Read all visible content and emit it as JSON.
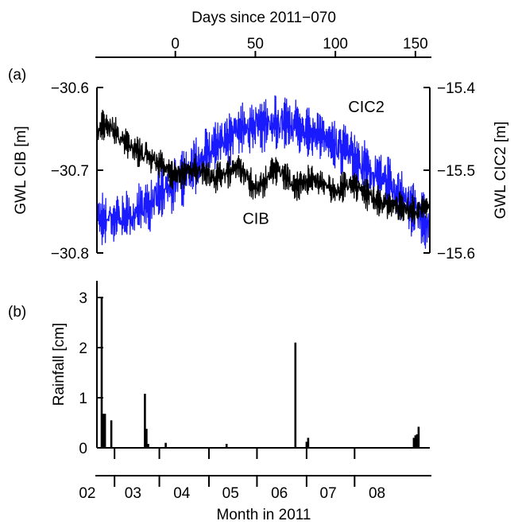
{
  "colors": {
    "cib": "#000000",
    "cic2": "#1a1aff",
    "rain": "#000000"
  },
  "top_axis": {
    "label": "Days since 2011−070",
    "ticks": [
      {
        "v": 0,
        "label": "0"
      },
      {
        "v": 50,
        "label": "50"
      },
      {
        "v": 100,
        "label": "100"
      },
      {
        "v": 150,
        "label": "150"
      }
    ]
  },
  "bottom_axis": {
    "label": "Month in 2011",
    "month_labels": [
      {
        "day": 15,
        "label": "02"
      },
      {
        "day": 43.5,
        "label": "03"
      },
      {
        "day": 74,
        "label": "04"
      },
      {
        "day": 104.5,
        "label": "05"
      },
      {
        "day": 135,
        "label": "06"
      },
      {
        "day": 165.5,
        "label": "07"
      },
      {
        "day": 196,
        "label": "08"
      }
    ],
    "boundaries": [
      32,
      60,
      91,
      121,
      152,
      182
    ]
  },
  "chart_data": [
    {
      "type": "line",
      "panel": "(a)",
      "x_unit": "day of year 2011",
      "xlim": [
        21,
        229
      ],
      "ylabel_left": "GWL CIB [m]",
      "ylabel_right": "GWL CIC2 [m]",
      "ylim_left": [
        -30.8,
        -30.6
      ],
      "ylim_right": [
        -15.6,
        -15.4
      ],
      "left_ticks": [
        {
          "v": -30.6,
          "label": "−30.6"
        },
        {
          "v": -30.7,
          "label": "−30.7"
        },
        {
          "v": -30.8,
          "label": "−30.8"
        }
      ],
      "right_ticks": [
        {
          "v": -15.4,
          "label": "−15.4"
        },
        {
          "v": -15.5,
          "label": "−15.5"
        },
        {
          "v": -15.6,
          "label": "−15.6"
        }
      ],
      "series": [
        {
          "name": "CIB",
          "axis": "left",
          "noise_amp": 0.02,
          "x": [
            21,
            25,
            30,
            35,
            40,
            45,
            50,
            55,
            60,
            65,
            70,
            75,
            80,
            85,
            90,
            95,
            100,
            105,
            110,
            115,
            120,
            125,
            130,
            135,
            140,
            145,
            150,
            155,
            160,
            165,
            170,
            175,
            180,
            185,
            190,
            195,
            200,
            205,
            210,
            215,
            220,
            225,
            229
          ],
          "y": [
            -30.655,
            -30.645,
            -30.65,
            -30.66,
            -30.67,
            -30.675,
            -30.68,
            -30.685,
            -30.69,
            -30.7,
            -30.705,
            -30.705,
            -30.7,
            -30.7,
            -30.705,
            -30.71,
            -30.705,
            -30.7,
            -30.695,
            -30.71,
            -30.72,
            -30.715,
            -30.7,
            -30.7,
            -30.71,
            -30.72,
            -30.715,
            -30.71,
            -30.715,
            -30.72,
            -30.725,
            -30.72,
            -30.715,
            -30.725,
            -30.73,
            -30.735,
            -30.74,
            -30.74,
            -30.745,
            -30.745,
            -30.75,
            -30.745,
            -30.745
          ]
        },
        {
          "name": "CIC2",
          "axis": "right",
          "noise_amp": 0.035,
          "x": [
            21,
            25,
            30,
            35,
            40,
            45,
            50,
            55,
            60,
            65,
            70,
            75,
            80,
            85,
            90,
            95,
            100,
            105,
            110,
            115,
            120,
            125,
            130,
            135,
            140,
            145,
            150,
            155,
            160,
            165,
            170,
            175,
            180,
            185,
            190,
            195,
            200,
            205,
            210,
            215,
            220,
            225,
            229
          ],
          "y": [
            -15.55,
            -15.56,
            -15.555,
            -15.555,
            -15.56,
            -15.55,
            -15.545,
            -15.54,
            -15.525,
            -15.52,
            -15.515,
            -15.51,
            -15.5,
            -15.49,
            -15.48,
            -15.47,
            -15.465,
            -15.46,
            -15.45,
            -15.45,
            -15.445,
            -15.445,
            -15.445,
            -15.44,
            -15.445,
            -15.445,
            -15.45,
            -15.455,
            -15.46,
            -15.465,
            -15.47,
            -15.475,
            -15.48,
            -15.49,
            -15.5,
            -15.505,
            -15.51,
            -15.52,
            -15.53,
            -15.54,
            -15.55,
            -15.56,
            -15.57
          ]
        }
      ],
      "annotations": [
        {
          "text": "CIC2",
          "series": "CIC2",
          "day": 178,
          "value": -15.43
        },
        {
          "text": "CIB",
          "series": "CIB",
          "day": 112,
          "value": -30.765
        }
      ]
    },
    {
      "type": "bar",
      "panel": "(b)",
      "x_unit": "day of year 2011",
      "xlim": [
        21,
        229
      ],
      "ylabel": "Rainfall [cm]",
      "ylim": [
        0,
        3.5
      ],
      "y_ticks": [
        {
          "v": 0,
          "label": "0"
        },
        {
          "v": 1,
          "label": "1"
        },
        {
          "v": 2,
          "label": "2"
        },
        {
          "v": 3,
          "label": "3"
        }
      ],
      "x": [
        24,
        25,
        26,
        30,
        51,
        52,
        53,
        64,
        102,
        145,
        152,
        153,
        219,
        220,
        221,
        222
      ],
      "values": [
        3.0,
        0.68,
        0.68,
        0.55,
        1.08,
        0.38,
        0.08,
        0.1,
        0.08,
        2.1,
        0.12,
        0.2,
        0.2,
        0.25,
        0.27,
        0.42
      ]
    }
  ]
}
